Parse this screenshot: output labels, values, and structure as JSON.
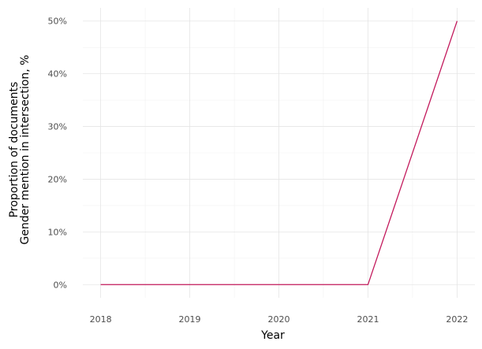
{
  "chart_data": {
    "type": "line",
    "xlabel": "Year",
    "ylabel_lines": [
      "Proportion of documents",
      "Gender mention in intersection, %"
    ],
    "x": [
      2018,
      2019,
      2020,
      2021,
      2022
    ],
    "x_tick_labels": [
      "2018",
      "2019",
      "2020",
      "2021",
      "2022"
    ],
    "series": [
      {
        "values": [
          0,
          0,
          0,
          0,
          50
        ],
        "color": "#c2185b"
      }
    ],
    "y_ticks": [
      0,
      10,
      20,
      30,
      40,
      50
    ],
    "y_tick_labels": [
      "0%",
      "10%",
      "20%",
      "30%",
      "40%",
      "50%"
    ],
    "ylim": [
      -2.5,
      52.5
    ],
    "xlim": [
      2017.8,
      2022.2
    ],
    "grid": true,
    "legend": "none"
  }
}
